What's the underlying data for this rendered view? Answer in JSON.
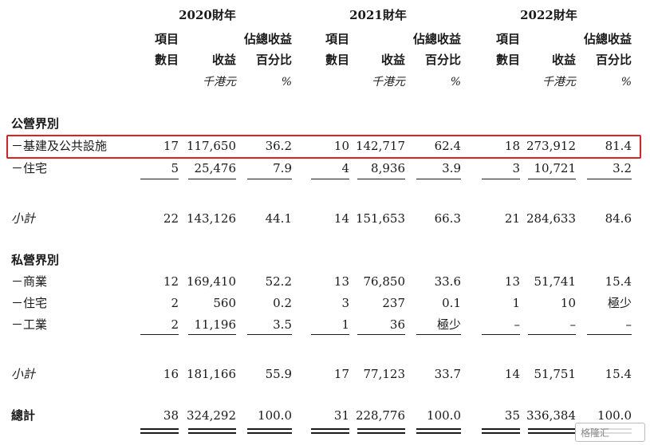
{
  "years": [
    "2020財年",
    "2021財年",
    "2022財年"
  ],
  "col_headers": {
    "items": [
      "項目",
      "數目"
    ],
    "revenue": "收益",
    "pct": [
      "佔總收益",
      "百分比"
    ],
    "unit_revenue": "千港元",
    "unit_pct": "%"
  },
  "sections": {
    "public_title": "公營界別",
    "private_title": "私營界別",
    "subtotal_label": "小計",
    "total_label": "總計"
  },
  "rows": {
    "r1": [
      "－基建及公共設施",
      "17",
      "117,650",
      "36.2",
      "10",
      "142,717",
      "62.4",
      "18",
      "273,912",
      "81.4"
    ],
    "r2": [
      "－住宅",
      "5",
      "25,476",
      "7.9",
      "4",
      "8,936",
      "3.9",
      "3",
      "10,721",
      "3.2"
    ],
    "sub1": [
      "小計",
      "22",
      "143,126",
      "44.1",
      "14",
      "151,653",
      "66.3",
      "21",
      "284,633",
      "84.6"
    ],
    "r3": [
      "－商業",
      "12",
      "169,410",
      "52.2",
      "13",
      "76,850",
      "33.6",
      "13",
      "51,741",
      "15.4"
    ],
    "r4": [
      "－住宅",
      "2",
      "560",
      "0.2",
      "3",
      "237",
      "0.1",
      "1",
      "10",
      "極少"
    ],
    "r5": [
      "－工業",
      "2",
      "11,196",
      "3.5",
      "1",
      "36",
      "極少",
      "–",
      "–",
      "–"
    ],
    "sub2": [
      "小計",
      "16",
      "181,166",
      "55.9",
      "17",
      "77,123",
      "33.7",
      "14",
      "51,751",
      "15.4"
    ],
    "total": [
      "總計",
      "38",
      "324,292",
      "100.0",
      "31",
      "228,776",
      "100.0",
      "35",
      "336,384",
      "100.0"
    ]
  },
  "watermark": "格隆汇"
}
